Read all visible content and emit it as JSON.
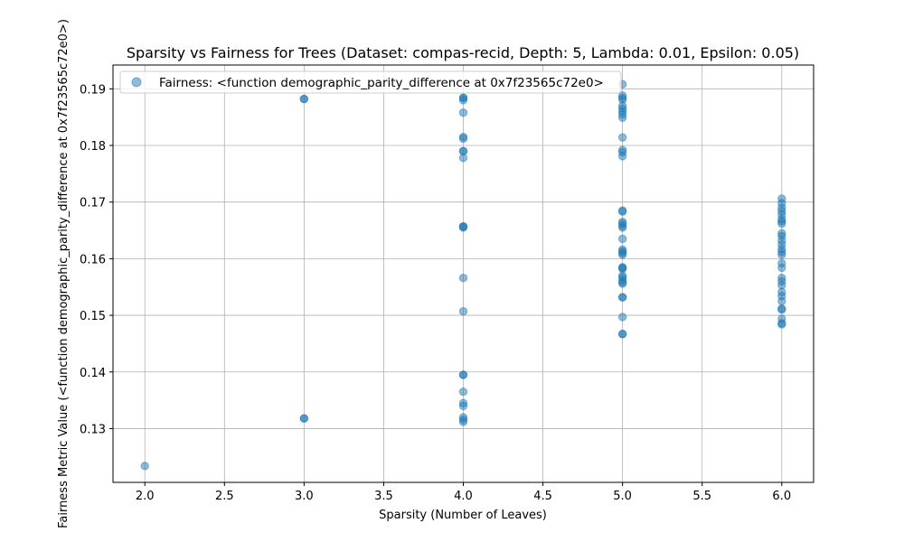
{
  "chart_data": {
    "type": "scatter",
    "title": "Sparsity vs Fairness for Trees (Dataset: compas-recid, Depth: 5, Lambda: 0.01, Epsilon: 0.05)",
    "xlabel": "Sparsity (Number of Leaves)",
    "ylabel": "Fairness Metric Value (<function demographic_parity_difference at 0x7f23565c72e0>)",
    "xlim": [
      1.8,
      6.2
    ],
    "ylim": [
      0.1205,
      0.1942
    ],
    "xticks": [
      "2.0",
      "2.5",
      "3.0",
      "3.5",
      "4.0",
      "4.5",
      "5.0",
      "5.5",
      "6.0"
    ],
    "yticks": [
      "0.13",
      "0.14",
      "0.15",
      "0.16",
      "0.17",
      "0.18",
      "0.19"
    ],
    "grid": true,
    "legend_position": "upper-left",
    "marker_color": "#1f77b4",
    "marker_alpha": 0.5,
    "series": [
      {
        "name": "Fairness: <function demographic_parity_difference at 0x7f23565c72e0>",
        "points": [
          {
            "x": 2,
            "y": 0.1234
          },
          {
            "x": 3,
            "y": 0.1318
          },
          {
            "x": 3,
            "y": 0.1318
          },
          {
            "x": 3,
            "y": 0.1882
          },
          {
            "x": 3,
            "y": 0.1882
          },
          {
            "x": 4,
            "y": 0.1312
          },
          {
            "x": 4,
            "y": 0.1316
          },
          {
            "x": 4,
            "y": 0.132
          },
          {
            "x": 4,
            "y": 0.134
          },
          {
            "x": 4,
            "y": 0.1345
          },
          {
            "x": 4,
            "y": 0.1365
          },
          {
            "x": 4,
            "y": 0.1395
          },
          {
            "x": 4,
            "y": 0.1395
          },
          {
            "x": 4,
            "y": 0.1507
          },
          {
            "x": 4,
            "y": 0.1566
          },
          {
            "x": 4,
            "y": 0.1655
          },
          {
            "x": 4,
            "y": 0.1657
          },
          {
            "x": 4,
            "y": 0.1657
          },
          {
            "x": 4,
            "y": 0.1778
          },
          {
            "x": 4,
            "y": 0.179
          },
          {
            "x": 4,
            "y": 0.179
          },
          {
            "x": 4,
            "y": 0.1812
          },
          {
            "x": 4,
            "y": 0.1815
          },
          {
            "x": 4,
            "y": 0.1858
          },
          {
            "x": 4,
            "y": 0.188
          },
          {
            "x": 4,
            "y": 0.1884
          },
          {
            "x": 4,
            "y": 0.1884
          },
          {
            "x": 5,
            "y": 0.1467
          },
          {
            "x": 5,
            "y": 0.1467
          },
          {
            "x": 5,
            "y": 0.1497
          },
          {
            "x": 5,
            "y": 0.1532
          },
          {
            "x": 5,
            "y": 0.1532
          },
          {
            "x": 5,
            "y": 0.1556
          },
          {
            "x": 5,
            "y": 0.1558
          },
          {
            "x": 5,
            "y": 0.1562
          },
          {
            "x": 5,
            "y": 0.1567
          },
          {
            "x": 5,
            "y": 0.157
          },
          {
            "x": 5,
            "y": 0.1582
          },
          {
            "x": 5,
            "y": 0.1584
          },
          {
            "x": 5,
            "y": 0.1585
          },
          {
            "x": 5,
            "y": 0.1607
          },
          {
            "x": 5,
            "y": 0.161
          },
          {
            "x": 5,
            "y": 0.1613
          },
          {
            "x": 5,
            "y": 0.1616
          },
          {
            "x": 5,
            "y": 0.1635
          },
          {
            "x": 5,
            "y": 0.1655
          },
          {
            "x": 5,
            "y": 0.1658
          },
          {
            "x": 5,
            "y": 0.1662
          },
          {
            "x": 5,
            "y": 0.1665
          },
          {
            "x": 5,
            "y": 0.1683
          },
          {
            "x": 5,
            "y": 0.1685
          },
          {
            "x": 5,
            "y": 0.1781
          },
          {
            "x": 5,
            "y": 0.1788
          },
          {
            "x": 5,
            "y": 0.1792
          },
          {
            "x": 5,
            "y": 0.1814
          },
          {
            "x": 5,
            "y": 0.1849
          },
          {
            "x": 5,
            "y": 0.1855
          },
          {
            "x": 5,
            "y": 0.186
          },
          {
            "x": 5,
            "y": 0.1865
          },
          {
            "x": 5,
            "y": 0.187
          },
          {
            "x": 5,
            "y": 0.1881
          },
          {
            "x": 5,
            "y": 0.1884
          },
          {
            "x": 5,
            "y": 0.1888
          },
          {
            "x": 5,
            "y": 0.1908
          },
          {
            "x": 6,
            "y": 0.1484
          },
          {
            "x": 6,
            "y": 0.1486
          },
          {
            "x": 6,
            "y": 0.1494
          },
          {
            "x": 6,
            "y": 0.151
          },
          {
            "x": 6,
            "y": 0.1512
          },
          {
            "x": 6,
            "y": 0.1525
          },
          {
            "x": 6,
            "y": 0.1534
          },
          {
            "x": 6,
            "y": 0.1541
          },
          {
            "x": 6,
            "y": 0.1553
          },
          {
            "x": 6,
            "y": 0.156
          },
          {
            "x": 6,
            "y": 0.1566
          },
          {
            "x": 6,
            "y": 0.1584
          },
          {
            "x": 6,
            "y": 0.1592
          },
          {
            "x": 6,
            "y": 0.1607
          },
          {
            "x": 6,
            "y": 0.1612
          },
          {
            "x": 6,
            "y": 0.1617
          },
          {
            "x": 6,
            "y": 0.1625
          },
          {
            "x": 6,
            "y": 0.1632
          },
          {
            "x": 6,
            "y": 0.164
          },
          {
            "x": 6,
            "y": 0.1645
          },
          {
            "x": 6,
            "y": 0.1662
          },
          {
            "x": 6,
            "y": 0.1666
          },
          {
            "x": 6,
            "y": 0.167
          },
          {
            "x": 6,
            "y": 0.1678
          },
          {
            "x": 6,
            "y": 0.1684
          },
          {
            "x": 6,
            "y": 0.169
          },
          {
            "x": 6,
            "y": 0.1698
          },
          {
            "x": 6,
            "y": 0.1706
          }
        ]
      }
    ]
  }
}
